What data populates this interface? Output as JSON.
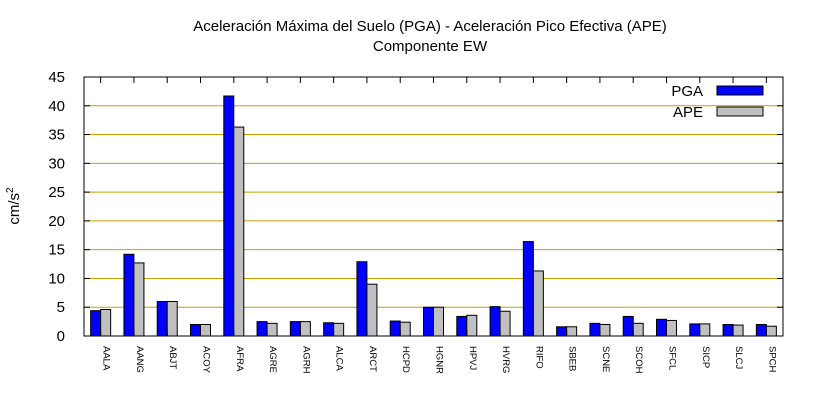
{
  "chart_data": {
    "type": "bar",
    "title": "Aceleración Máxima del Suelo (PGA) -  Aceleración Pico Efectiva (APE)",
    "subtitle": "Componente EW",
    "xlabel": "",
    "ylabel": "cm/s",
    "ylabel_superscript": "2",
    "ylim": [
      0,
      45
    ],
    "yticks": [
      0,
      5,
      10,
      15,
      20,
      25,
      30,
      35,
      40,
      45
    ],
    "grid": true,
    "legend_position": "top-right",
    "categories": [
      "AALA",
      "AANG",
      "ABJT",
      "ACOY",
      "AFRA",
      "AGRE",
      "AGRH",
      "ALCA",
      "ARCT",
      "HCPD",
      "HGNR",
      "HPVJ",
      "HVRG",
      "RIFO",
      "SBEB",
      "SCNE",
      "SCOH",
      "SFCL",
      "SICP",
      "SLCJ",
      "SPCH"
    ],
    "series": [
      {
        "name": "PGA",
        "color": "#0000ff",
        "values": [
          4.4,
          14.2,
          6.0,
          2.0,
          41.7,
          2.5,
          2.5,
          2.3,
          12.9,
          2.6,
          5.0,
          3.4,
          5.1,
          16.4,
          1.6,
          2.2,
          3.4,
          2.9,
          2.1,
          2.0,
          2.0
        ]
      },
      {
        "name": "APE",
        "color": "#c0c0c0",
        "values": [
          4.6,
          12.7,
          6.0,
          2.0,
          36.3,
          2.2,
          2.5,
          2.2,
          9.0,
          2.4,
          5.0,
          3.6,
          4.3,
          11.3,
          1.6,
          2.0,
          2.2,
          2.7,
          2.1,
          1.9,
          1.7
        ]
      }
    ]
  }
}
